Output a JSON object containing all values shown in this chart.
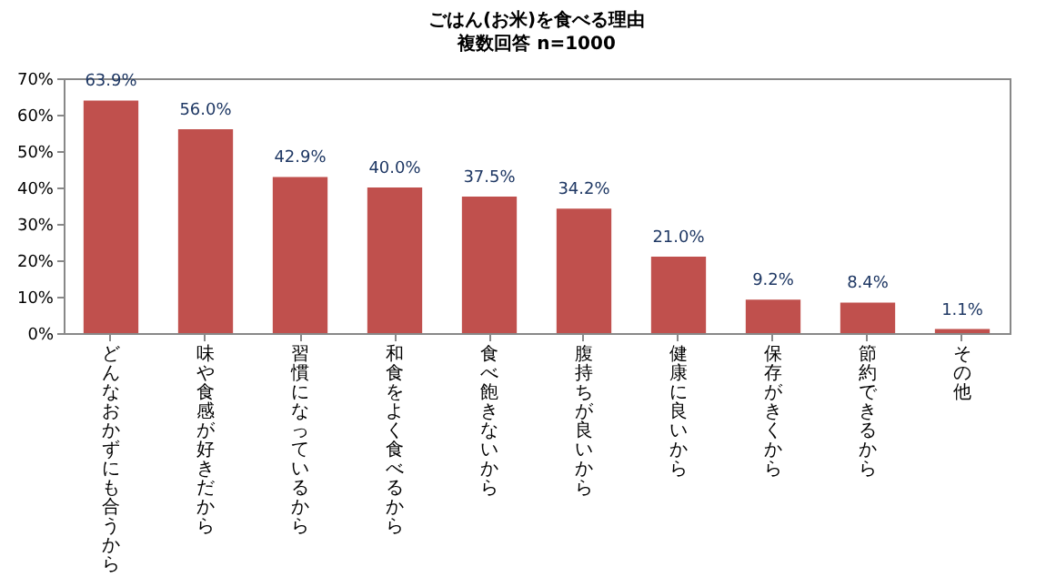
{
  "chart_data": {
    "type": "bar",
    "title": "ごはん(お米)を食べる理由",
    "subtitle": "複数回答 n=1000",
    "categories": [
      "どんなおかずにも合うから",
      "味や食感が好きだから",
      "習慣になっているから",
      "和食をよく食べるから",
      "食べ飽きないから",
      "腹持ちが良いから",
      "健康に良いから",
      "保存がきくから",
      "節約できるから",
      "その他"
    ],
    "values": [
      63.9,
      56.0,
      42.9,
      40.0,
      37.5,
      34.2,
      21.0,
      9.2,
      8.4,
      1.1
    ],
    "value_labels": [
      "63.9%",
      "56.0%",
      "42.9%",
      "40.0%",
      "37.5%",
      "34.2%",
      "21.0%",
      "9.2%",
      "8.4%",
      "1.1%"
    ],
    "color": "#c0504d",
    "ylim": [
      0,
      70
    ],
    "yticks": [
      {
        "value": 0,
        "label": "0%"
      },
      {
        "value": 10,
        "label": "10%"
      },
      {
        "value": 20,
        "label": "20%"
      },
      {
        "value": 30,
        "label": "30%"
      },
      {
        "value": 40,
        "label": "40%"
      },
      {
        "value": 50,
        "label": "50%"
      },
      {
        "value": 60,
        "label": "60%"
      },
      {
        "value": 70,
        "label": "70%"
      }
    ],
    "grid": false
  }
}
